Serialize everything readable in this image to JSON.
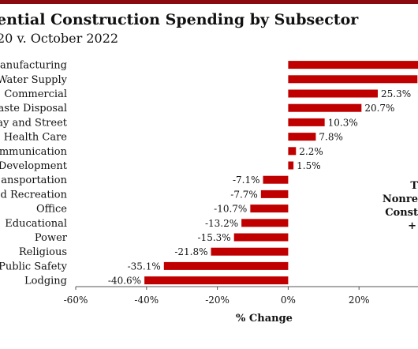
{
  "chart_data": {
    "type": "bar",
    "orientation": "horizontal",
    "title": "ential Construction Spending by Subsector",
    "subtitle": "20 v. October 2022",
    "xlabel": "% Change",
    "ylabel": "",
    "xlim": [
      -60,
      40
    ],
    "xticks": [
      -60,
      -40,
      -20,
      0,
      20
    ],
    "xtick_labels": [
      "-60%",
      "-40%",
      "-20%",
      "0%",
      "20%"
    ],
    "grid": false,
    "categories": [
      "anufacturing",
      "Water Supply",
      "Commercial",
      "aste Disposal",
      "ay and Street",
      "Health Care",
      "mmunication",
      "Development",
      "ansportation",
      "d Recreation",
      "Office",
      "Educational",
      "Power",
      "Religious",
      "Public Safety",
      "Lodging"
    ],
    "values": [
      40,
      36.5,
      25.3,
      20.7,
      10.3,
      7.8,
      2.2,
      1.5,
      -7.1,
      -7.7,
      -10.7,
      -13.2,
      -15.3,
      -21.8,
      -35.1,
      -40.6
    ],
    "data_labels": [
      "",
      "",
      "25.3%",
      "20.7%",
      "10.3%",
      "7.8%",
      "2.2%",
      "1.5%",
      "-7.1%",
      "-7.7%",
      "-10.7%",
      "-13.2%",
      "-15.3%",
      "-21.8%",
      "-35.1%",
      "-40.6%"
    ],
    "bar_color": "#c00000"
  },
  "annotation": {
    "lines": [
      "T",
      "Nonre",
      "Const",
      "+"
    ]
  },
  "colors": {
    "topbar": "#8b0a10",
    "bar": "#c00000"
  }
}
